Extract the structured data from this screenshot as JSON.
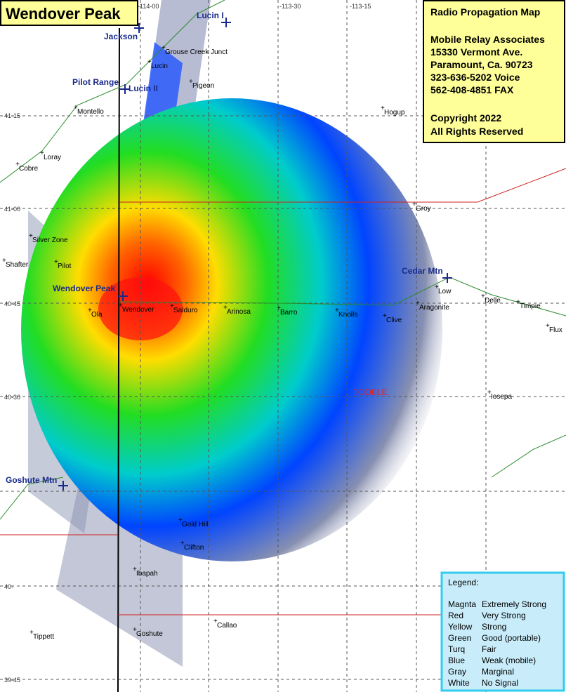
{
  "title": "Wendover Peak",
  "info": {
    "heading": "Radio Propagation Map",
    "lines": [
      "Mobile Relay Associates",
      "15330 Vermont Ave.",
      "Paramount, Ca. 90723",
      "323-636-5202 Voice",
      "562-408-4851 FAX"
    ],
    "copyright": [
      "Copyright 2022",
      "All Rights Reserved"
    ]
  },
  "grid_labels": {
    "longitude": [
      "-114-00",
      "-113-30",
      "-113-15"
    ],
    "latitude": [
      "41-15",
      "41-00",
      "40-45",
      "40-30",
      "40-",
      "39-45"
    ]
  },
  "sites": [
    "Jackson",
    "Lucin I",
    "Pilot Range",
    "Lucin II",
    "Cedar Mtn",
    "Wendover Peak",
    "Goshute Mtn"
  ],
  "places": [
    "Grouse Creek Junct",
    "Lucin",
    "Pigeon",
    "Montello",
    "Hogup",
    "Loray",
    "Cobre",
    "Groy",
    "Silver Zone",
    "Shafter",
    "Pilot",
    "Low",
    "Delle",
    "Timpie",
    "Ola",
    "Wendover",
    "Salduro",
    "Arinosa",
    "Barro",
    "Knolls",
    "Clive",
    "Aragonite",
    "Flux",
    "Iosepa",
    "Gold Hill",
    "Clifton",
    "Ibapah",
    "Callao",
    "Tippett",
    "Goshute"
  ],
  "county": "TOOELE",
  "legend": {
    "title": "Legend:",
    "entries": [
      {
        "name": "Magnta",
        "description": "Extremely Strong"
      },
      {
        "name": "Red",
        "description": "Very Strong"
      },
      {
        "name": "Yellow",
        "description": "Strong"
      },
      {
        "name": "Green",
        "description": "Good (portable)"
      },
      {
        "name": "Turq",
        "description": "Fair"
      },
      {
        "name": "Blue",
        "description": "Weak (mobile)"
      },
      {
        "name": "Gray",
        "description": "Marginal"
      },
      {
        "name": "White",
        "description": "No Signal"
      }
    ]
  }
}
